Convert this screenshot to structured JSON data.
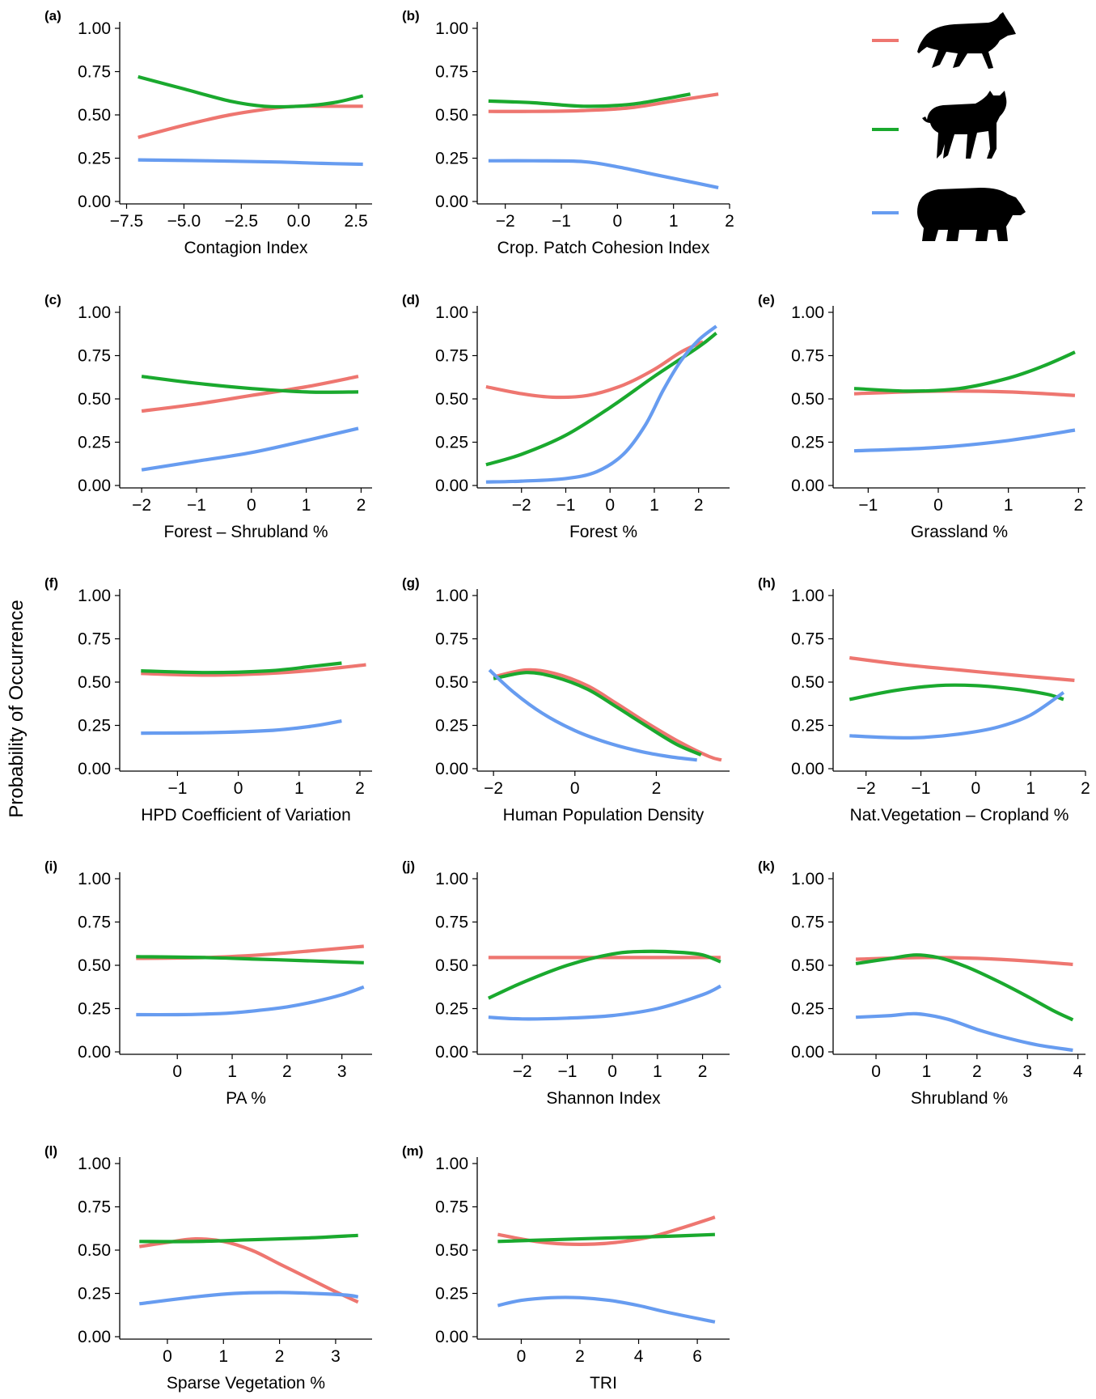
{
  "y_axis_label": "Probability of Occurrence",
  "colors": {
    "wolf": "#ee7670",
    "lynx": "#1aa92e",
    "bear": "#679cf0"
  },
  "legend": [
    {
      "color": "#ee7670",
      "icon": "wolf-icon"
    },
    {
      "color": "#1aa92e",
      "icon": "lynx-icon"
    },
    {
      "color": "#679cf0",
      "icon": "bear-icon"
    }
  ],
  "chart_data": [
    {
      "type": "line",
      "tag": "(a)",
      "xlabel": "Contagion Index",
      "ylim": [
        0,
        1
      ],
      "yticks": [
        "0.00",
        "0.25",
        "0.50",
        "0.75",
        "1.00"
      ],
      "xlim": [
        -7.8,
        3.2
      ],
      "xticks": [
        -7.5,
        -5,
        -2.5,
        0,
        2.5
      ],
      "xticklabels": [
        "−7.5",
        "−5.0",
        "−2.5",
        "0.0",
        "2.5"
      ],
      "series": [
        {
          "x": [
            -7,
            -5,
            -3,
            -1,
            0,
            1,
            2.8
          ],
          "values": [
            0.37,
            0.44,
            0.5,
            0.54,
            0.55,
            0.55,
            0.55
          ]
        },
        {
          "x": [
            -7,
            -5,
            -3,
            -1.5,
            0,
            1.5,
            2.8
          ],
          "values": [
            0.72,
            0.65,
            0.58,
            0.55,
            0.55,
            0.57,
            0.61
          ]
        },
        {
          "x": [
            -7,
            -4,
            -1,
            1,
            2.8
          ],
          "values": [
            0.24,
            0.235,
            0.228,
            0.22,
            0.215
          ]
        }
      ]
    },
    {
      "type": "line",
      "tag": "(b)",
      "xlabel": "Crop. Patch Cohesion Index",
      "ylim": [
        0,
        1
      ],
      "yticks": [
        "0.00",
        "0.25",
        "0.50",
        "0.75",
        "1.00"
      ],
      "xlim": [
        -2.5,
        2
      ],
      "xticks": [
        -2,
        -1,
        0,
        1,
        2
      ],
      "xticklabels": [
        "−2",
        "−1",
        "0",
        "1",
        "2"
      ],
      "series": [
        {
          "x": [
            -2.3,
            -1.5,
            -0.6,
            0.2,
            1,
            1.8
          ],
          "values": [
            0.52,
            0.52,
            0.525,
            0.54,
            0.58,
            0.62
          ]
        },
        {
          "x": [
            -2.3,
            -1.5,
            -0.6,
            0.2,
            0.8,
            1.3
          ],
          "values": [
            0.58,
            0.57,
            0.55,
            0.56,
            0.59,
            0.62
          ]
        },
        {
          "x": [
            -2.3,
            -1.5,
            -0.6,
            0,
            0.6,
            1.2,
            1.8
          ],
          "values": [
            0.235,
            0.235,
            0.23,
            0.2,
            0.16,
            0.12,
            0.08
          ]
        }
      ]
    },
    {
      "type": "line",
      "tag": "(c)",
      "xlabel": "Forest – Shrubland %",
      "ylim": [
        0,
        1
      ],
      "yticks": [
        "0.00",
        "0.25",
        "0.50",
        "0.75",
        "1.00"
      ],
      "xlim": [
        -2.4,
        2.2
      ],
      "xticks": [
        -2,
        -1,
        0,
        1,
        2
      ],
      "xticklabels": [
        "−2",
        "−1",
        "0",
        "1",
        "2"
      ],
      "series": [
        {
          "x": [
            -2,
            -1,
            0,
            1,
            1.95
          ],
          "values": [
            0.43,
            0.47,
            0.52,
            0.57,
            0.63
          ]
        },
        {
          "x": [
            -2,
            -1,
            0,
            1,
            1.95
          ],
          "values": [
            0.63,
            0.59,
            0.56,
            0.54,
            0.54
          ]
        },
        {
          "x": [
            -2,
            -1,
            0,
            1,
            1.95
          ],
          "values": [
            0.09,
            0.14,
            0.19,
            0.26,
            0.33
          ]
        }
      ]
    },
    {
      "type": "line",
      "tag": "(d)",
      "xlabel": "Forest %",
      "ylim": [
        0,
        1
      ],
      "yticks": [
        "0.00",
        "0.25",
        "0.50",
        "0.75",
        "1.00"
      ],
      "xlim": [
        -3,
        2.7
      ],
      "xticks": [
        -2,
        -1,
        0,
        1,
        2
      ],
      "xticklabels": [
        "−2",
        "−1",
        "0",
        "1",
        "2"
      ],
      "series": [
        {
          "x": [
            -2.8,
            -2,
            -1.3,
            -0.5,
            0.3,
            1,
            1.6,
            2.1
          ],
          "values": [
            0.57,
            0.53,
            0.51,
            0.52,
            0.58,
            0.67,
            0.77,
            0.83
          ]
        },
        {
          "x": [
            -2.8,
            -2,
            -1,
            0,
            1,
            2,
            2.4
          ],
          "values": [
            0.12,
            0.18,
            0.29,
            0.45,
            0.63,
            0.8,
            0.88
          ]
        },
        {
          "x": [
            -2.8,
            -2,
            -1,
            -0.3,
            0.3,
            0.8,
            1.2,
            1.6,
            2,
            2.4
          ],
          "values": [
            0.02,
            0.025,
            0.04,
            0.08,
            0.18,
            0.35,
            0.55,
            0.72,
            0.84,
            0.92
          ]
        }
      ]
    },
    {
      "type": "line",
      "tag": "(e)",
      "xlabel": "Grassland %",
      "ylim": [
        0,
        1
      ],
      "yticks": [
        "0.00",
        "0.25",
        "0.50",
        "0.75",
        "1.00"
      ],
      "xlim": [
        -1.5,
        2.1
      ],
      "xticks": [
        -1,
        0,
        1,
        2
      ],
      "xticklabels": [
        "−1",
        "0",
        "1",
        "2"
      ],
      "series": [
        {
          "x": [
            -1.2,
            0,
            1,
            1.95
          ],
          "values": [
            0.53,
            0.545,
            0.54,
            0.52
          ]
        },
        {
          "x": [
            -1.2,
            -0.4,
            0.3,
            1,
            1.5,
            1.95
          ],
          "values": [
            0.56,
            0.545,
            0.56,
            0.62,
            0.69,
            0.77
          ]
        },
        {
          "x": [
            -1.2,
            0,
            1,
            1.95
          ],
          "values": [
            0.2,
            0.22,
            0.26,
            0.32
          ]
        }
      ]
    },
    {
      "type": "line",
      "tag": "(f)",
      "xlabel": "HPD Coefficient of Variation",
      "ylim": [
        0,
        1
      ],
      "yticks": [
        "0.00",
        "0.25",
        "0.50",
        "0.75",
        "1.00"
      ],
      "xlim": [
        -1.95,
        2.2
      ],
      "xticks": [
        -1,
        0,
        1,
        2
      ],
      "xticklabels": [
        "−1",
        "0",
        "1",
        "2"
      ],
      "series": [
        {
          "x": [
            -1.6,
            -0.5,
            0.5,
            1.3,
            2.1
          ],
          "values": [
            0.55,
            0.54,
            0.55,
            0.57,
            0.6
          ]
        },
        {
          "x": [
            -1.6,
            -0.5,
            0.5,
            1.2,
            1.7
          ],
          "values": [
            0.565,
            0.555,
            0.565,
            0.59,
            0.61
          ]
        },
        {
          "x": [
            -1.6,
            -0.5,
            0.5,
            1.2,
            1.7
          ],
          "values": [
            0.205,
            0.208,
            0.22,
            0.245,
            0.275
          ]
        }
      ]
    },
    {
      "type": "line",
      "tag": "(g)",
      "xlabel": "Human Population Density",
      "ylim": [
        0,
        1
      ],
      "yticks": [
        "0.00",
        "0.25",
        "0.50",
        "0.75",
        "1.00"
      ],
      "xlim": [
        -2.4,
        3.8
      ],
      "xticks": [
        -2,
        0,
        2
      ],
      "xticklabels": [
        "−2",
        "0",
        "2"
      ],
      "series": [
        {
          "x": [
            -2,
            -1.2,
            -0.5,
            0.3,
            1,
            1.8,
            2.6,
            3.3,
            3.6
          ],
          "values": [
            0.53,
            0.57,
            0.55,
            0.48,
            0.38,
            0.26,
            0.15,
            0.07,
            0.05
          ]
        },
        {
          "x": [
            -2,
            -1.2,
            -0.5,
            0.3,
            1,
            1.8,
            2.5,
            3.1
          ],
          "values": [
            0.52,
            0.555,
            0.53,
            0.46,
            0.36,
            0.24,
            0.14,
            0.08
          ]
        },
        {
          "x": [
            -2.1,
            -1.5,
            -0.8,
            0,
            0.8,
            1.6,
            2.3,
            3
          ],
          "values": [
            0.57,
            0.44,
            0.32,
            0.22,
            0.15,
            0.1,
            0.07,
            0.05
          ]
        }
      ]
    },
    {
      "type": "line",
      "tag": "(h)",
      "xlabel": "Nat.Vegetation – Cropland %",
      "ylim": [
        0,
        1
      ],
      "yticks": [
        "0.00",
        "0.25",
        "0.50",
        "0.75",
        "1.00"
      ],
      "xlim": [
        -2.6,
        2
      ],
      "xticks": [
        -2,
        -1,
        0,
        1,
        2
      ],
      "xticklabels": [
        "−2",
        "−1",
        "0",
        "1",
        "2"
      ],
      "series": [
        {
          "x": [
            -2.3,
            -1.3,
            -0.3,
            0.7,
            1.8
          ],
          "values": [
            0.64,
            0.6,
            0.57,
            0.54,
            0.51
          ]
        },
        {
          "x": [
            -2.3,
            -1.5,
            -0.7,
            0,
            0.7,
            1.3,
            1.6
          ],
          "values": [
            0.4,
            0.45,
            0.48,
            0.48,
            0.46,
            0.43,
            0.4
          ]
        },
        {
          "x": [
            -2.3,
            -1.6,
            -1,
            -0.3,
            0.4,
            1,
            1.6
          ],
          "values": [
            0.19,
            0.18,
            0.18,
            0.2,
            0.24,
            0.31,
            0.44
          ]
        }
      ]
    },
    {
      "type": "line",
      "tag": "(i)",
      "xlabel": "PA %",
      "ylim": [
        0,
        1
      ],
      "yticks": [
        "0.00",
        "0.25",
        "0.50",
        "0.75",
        "1.00"
      ],
      "xlim": [
        -1.05,
        3.55
      ],
      "xticks": [
        0,
        1,
        2,
        3
      ],
      "xticklabels": [
        "0",
        "1",
        "2",
        "3"
      ],
      "series": [
        {
          "x": [
            -0.75,
            0.5,
            1.5,
            2.5,
            3.4
          ],
          "values": [
            0.54,
            0.545,
            0.56,
            0.585,
            0.61
          ]
        },
        {
          "x": [
            -0.75,
            0.5,
            1.5,
            2.5,
            3.4
          ],
          "values": [
            0.55,
            0.545,
            0.535,
            0.525,
            0.515
          ]
        },
        {
          "x": [
            -0.75,
            0,
            0.5,
            1,
            1.5,
            2,
            2.5,
            3,
            3.4
          ],
          "values": [
            0.215,
            0.215,
            0.218,
            0.225,
            0.24,
            0.26,
            0.29,
            0.33,
            0.375
          ]
        }
      ]
    },
    {
      "type": "line",
      "tag": "(j)",
      "xlabel": "Shannon Index",
      "ylim": [
        0,
        1
      ],
      "yticks": [
        "0.00",
        "0.25",
        "0.50",
        "0.75",
        "1.00"
      ],
      "xlim": [
        -3,
        2.6
      ],
      "xticks": [
        -2,
        -1,
        0,
        1,
        2
      ],
      "xticklabels": [
        "−2",
        "−1",
        "0",
        "1",
        "2"
      ],
      "series": [
        {
          "x": [
            -2.75,
            -1,
            0,
            1,
            2.4
          ],
          "values": [
            0.545,
            0.545,
            0.545,
            0.545,
            0.545
          ]
        },
        {
          "x": [
            -2.75,
            -2,
            -1,
            0,
            0.7,
            1.5,
            2,
            2.4
          ],
          "values": [
            0.31,
            0.4,
            0.5,
            0.565,
            0.58,
            0.575,
            0.56,
            0.52
          ]
        },
        {
          "x": [
            -2.75,
            -2,
            -1,
            0,
            1,
            2,
            2.4
          ],
          "values": [
            0.2,
            0.19,
            0.195,
            0.21,
            0.25,
            0.33,
            0.38
          ]
        }
      ]
    },
    {
      "type": "line",
      "tag": "(k)",
      "xlabel": "Shrubland %",
      "ylim": [
        0,
        1
      ],
      "yticks": [
        "0.00",
        "0.25",
        "0.50",
        "0.75",
        "1.00"
      ],
      "xlim": [
        -0.85,
        4.15
      ],
      "xticks": [
        0,
        1,
        2,
        3,
        4
      ],
      "xticklabels": [
        "0",
        "1",
        "2",
        "3",
        "4"
      ],
      "series": [
        {
          "x": [
            -0.4,
            1,
            2,
            3,
            3.9
          ],
          "values": [
            0.535,
            0.545,
            0.54,
            0.525,
            0.505
          ]
        },
        {
          "x": [
            -0.4,
            0.3,
            0.8,
            1.3,
            1.8,
            2.4,
            3,
            3.5,
            3.9
          ],
          "values": [
            0.51,
            0.54,
            0.56,
            0.54,
            0.49,
            0.41,
            0.32,
            0.24,
            0.185
          ]
        },
        {
          "x": [
            -0.4,
            0.3,
            0.8,
            1.4,
            2,
            2.6,
            3.2,
            3.9
          ],
          "values": [
            0.2,
            0.21,
            0.22,
            0.19,
            0.13,
            0.08,
            0.04,
            0.01
          ]
        }
      ]
    },
    {
      "type": "line",
      "tag": "(l)",
      "xlabel": "Sparse Vegetation %",
      "ylim": [
        0,
        1
      ],
      "yticks": [
        "0.00",
        "0.25",
        "0.50",
        "0.75",
        "1.00"
      ],
      "xlim": [
        -0.85,
        3.65
      ],
      "xticks": [
        0,
        1,
        2,
        3
      ],
      "xticklabels": [
        "0",
        "1",
        "2",
        "3"
      ],
      "series": [
        {
          "x": [
            -0.5,
            0,
            0.5,
            1,
            1.5,
            2,
            2.5,
            3,
            3.4
          ],
          "values": [
            0.52,
            0.545,
            0.565,
            0.55,
            0.5,
            0.42,
            0.34,
            0.26,
            0.2
          ]
        },
        {
          "x": [
            -0.5,
            0.5,
            1.5,
            2.5,
            3.4
          ],
          "values": [
            0.55,
            0.55,
            0.56,
            0.57,
            0.585
          ]
        },
        {
          "x": [
            -0.5,
            0.5,
            1.2,
            2,
            2.6,
            3.2,
            3.4
          ],
          "values": [
            0.19,
            0.23,
            0.25,
            0.255,
            0.25,
            0.24,
            0.23
          ]
        }
      ]
    },
    {
      "type": "line",
      "tag": "(m)",
      "xlabel": "TRI",
      "ylim": [
        0,
        1
      ],
      "yticks": [
        "0.00",
        "0.25",
        "0.50",
        "0.75",
        "1.00"
      ],
      "xlim": [
        -1.5,
        7.1
      ],
      "xticks": [
        0,
        2,
        4,
        6
      ],
      "xticklabels": [
        "0",
        "2",
        "4",
        "6"
      ],
      "series": [
        {
          "x": [
            -0.8,
            0.5,
            1.5,
            2.5,
            3.5,
            4.5,
            5.5,
            6.6
          ],
          "values": [
            0.59,
            0.55,
            0.535,
            0.535,
            0.55,
            0.58,
            0.63,
            0.69
          ]
        },
        {
          "x": [
            -0.8,
            1,
            3,
            5,
            6.6
          ],
          "values": [
            0.55,
            0.56,
            0.57,
            0.58,
            0.59
          ]
        },
        {
          "x": [
            -0.8,
            0,
            1,
            2,
            3,
            4,
            5,
            6.6
          ],
          "values": [
            0.18,
            0.21,
            0.225,
            0.225,
            0.21,
            0.18,
            0.14,
            0.085
          ]
        }
      ]
    }
  ]
}
